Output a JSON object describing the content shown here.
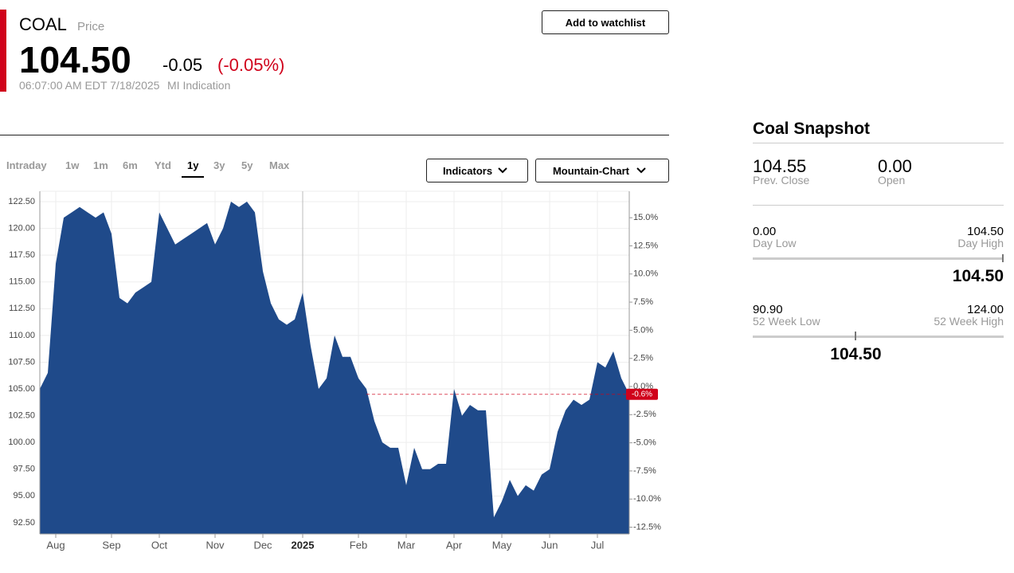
{
  "header": {
    "symbol": "COAL",
    "price_label": "Price",
    "price": "104.50",
    "change": "-0.05",
    "change_pct": "(-0.05%)",
    "timestamp": "06:07:00 AM EDT 7/18/2025",
    "source": "MI Indication",
    "watchlist_button": "Add to watchlist"
  },
  "tabs": [
    "Intraday",
    "1w",
    "1m",
    "6m",
    "Ytd",
    "1y",
    "3y",
    "5y",
    "Max"
  ],
  "active_tab": "1y",
  "dropdowns": [
    "Indicators",
    "Mountain-Chart"
  ],
  "chart_data": {
    "type": "area",
    "color": "#1f4a8a",
    "categories": [
      null,
      null,
      "Aug",
      null,
      null,
      null,
      null,
      null,
      null,
      "Sep",
      null,
      null,
      null,
      null,
      null,
      "Oct",
      null,
      null,
      null,
      null,
      null,
      null,
      "Nov",
      null,
      null,
      null,
      null,
      null,
      "Dec",
      null,
      null,
      null,
      null,
      "2025",
      null,
      null,
      null,
      null,
      null,
      null,
      "Feb",
      null,
      null,
      null,
      null,
      null,
      "Mar",
      null,
      null,
      null,
      null,
      null,
      "Apr",
      null,
      null,
      null,
      null,
      null,
      "May",
      null,
      null,
      null,
      null,
      null,
      "Jun",
      null,
      null,
      null,
      null,
      null,
      "Jul",
      null,
      null,
      null,
      null
    ],
    "values": [
      105,
      106.5,
      116.7,
      121,
      121.5,
      122,
      121.5,
      121,
      121.5,
      119.5,
      113.5,
      113,
      114,
      114.5,
      115,
      121.5,
      120,
      118.5,
      119,
      119.5,
      120,
      120.5,
      118.5,
      120,
      122.5,
      122,
      122.5,
      121.5,
      116,
      113,
      111.5,
      111,
      111.5,
      114,
      109,
      105,
      106,
      110,
      108,
      108,
      106,
      105,
      102,
      100,
      99.5,
      99.5,
      96,
      99.5,
      97.5,
      97.5,
      98,
      98,
      105,
      102.5,
      103.5,
      103,
      103,
      93,
      94.5,
      96.5,
      95,
      96,
      95.5,
      97,
      97.5,
      101,
      103,
      104,
      103.5,
      104,
      107.5,
      107,
      108.5,
      106,
      104.5
    ],
    "ylim": [
      91.45,
      123.47
    ],
    "yticks": [
      {
        "value": 92.5,
        "label": "92.50"
      },
      {
        "value": 95,
        "label": "95.00"
      },
      {
        "value": 97.5,
        "label": "97.50"
      },
      {
        "value": 100,
        "label": "100.00"
      },
      {
        "value": 102.5,
        "label": "102.50"
      },
      {
        "value": 105,
        "label": "105.00"
      },
      {
        "value": 107.5,
        "label": "107.50"
      },
      {
        "value": 110,
        "label": "110.00"
      },
      {
        "value": 112.5,
        "label": "112.50"
      },
      {
        "value": 115,
        "label": "115.00"
      },
      {
        "value": 117.5,
        "label": "117.50"
      },
      {
        "value": 120,
        "label": "120.00"
      },
      {
        "value": 122.5,
        "label": "122.50"
      }
    ],
    "y2lim": [
      -13.1,
      17.35
    ],
    "y2ticks": [
      {
        "value": -12.5,
        "label": "-12.5%"
      },
      {
        "value": -10,
        "label": "-10.0%"
      },
      {
        "value": -7.5,
        "label": "-7.5%"
      },
      {
        "value": -5,
        "label": "-5.0%"
      },
      {
        "value": -2.5,
        "label": "-2.5%"
      },
      {
        "value": 0,
        "label": "0.0%"
      },
      {
        "value": 2.5,
        "label": "2.5%"
      },
      {
        "value": 5,
        "label": "5.0%"
      },
      {
        "value": 7.5,
        "label": "7.5%"
      },
      {
        "value": 10,
        "label": "10.0%"
      },
      {
        "value": 12.5,
        "label": "12.5%"
      },
      {
        "value": 15,
        "label": "15.0%"
      }
    ],
    "last_change_label": "-0.6%",
    "grid": true
  },
  "snapshot": {
    "title": "Coal Snapshot",
    "prev_close": {
      "value": "104.55",
      "label": "Prev. Close"
    },
    "open": {
      "value": "0.00",
      "label": "Open"
    },
    "day_low": {
      "value": "0.00",
      "label": "Day Low"
    },
    "day_high": {
      "value": "104.50",
      "label": "Day High"
    },
    "day_current": "104.50",
    "week52_low": {
      "value": "90.90",
      "label": "52 Week Low"
    },
    "week52_high": {
      "value": "124.00",
      "label": "52 Week High"
    },
    "week52_current": "104.50"
  }
}
